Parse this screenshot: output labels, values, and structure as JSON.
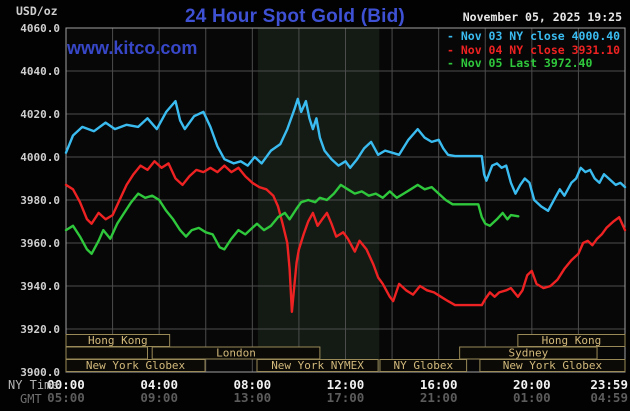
{
  "header": {
    "units_label": "USD/oz",
    "title": "24 Hour Spot Gold (Bid)",
    "datetime": "November 05, 2025 19:25",
    "watermark": "www.kitco.com"
  },
  "legend": {
    "items": [
      {
        "name": "Nov 03",
        "label": "- Nov 03 NY close 4000.40",
        "color": "#3bbcf0"
      },
      {
        "name": "Nov 04",
        "label": "- Nov 04 NY close 3931.10",
        "color": "#ee2222"
      },
      {
        "name": "Nov 05",
        "label": "- Nov 05 Last 3972.40",
        "color": "#2fc83c"
      }
    ]
  },
  "axis": {
    "ny_time_label": "NY Time",
    "gmt_label": "GMT"
  },
  "sessions": [
    {
      "row": 0,
      "start": 0,
      "end": 4.45,
      "label": "Hong Kong"
    },
    {
      "row": 0,
      "start": 19.4,
      "end": 24,
      "label": "Hong Kong"
    },
    {
      "row": 1,
      "start": 0,
      "end": 3.5,
      "label": ""
    },
    {
      "row": 1,
      "start": 3.7,
      "end": 10.9,
      "label": "London"
    },
    {
      "row": 1,
      "start": 16.9,
      "end": 22.8,
      "label": "Sydney"
    },
    {
      "row": 2,
      "start": 0,
      "end": 5.97,
      "label": "New York Globex"
    },
    {
      "row": 2,
      "start": 8.2,
      "end": 13.4,
      "label": "New York NYMEX"
    },
    {
      "row": 2,
      "start": 13.48,
      "end": 17.2,
      "label": "NY Globex"
    },
    {
      "row": 2,
      "start": 17.77,
      "end": 24,
      "label": "New York Globex"
    }
  ],
  "colors": {
    "background": "#020202",
    "plot_background": "#070707",
    "highlight_band": "#141b15",
    "grid": "#4c4c4c",
    "frame": "#a0a0a0",
    "title_blue": "#3e51d4",
    "watermark_blue": "#3747c8",
    "y_tick_text": "#cfcfcf",
    "x_tick_ny_text": "#f2f2f2",
    "x_tick_gmt_text": "#5c5c5c",
    "session_border": "#9a8a58",
    "session_text": "#d2b97c",
    "session_fill": "#0b0a06"
  },
  "chart_data": {
    "type": "line",
    "title": "24 Hour Spot Gold (Bid)",
    "x_unit": "hour of day (NY time)",
    "xlim": [
      0,
      24
    ],
    "ylim": [
      3900,
      4060
    ],
    "grid": true,
    "legend_position": "top-right",
    "highlight_band_hours": [
      8.24,
      13.45
    ],
    "y_tick_labels": [
      "4060.0",
      "4040.0",
      "4020.0",
      "4000.0",
      "3980.0",
      "3960.0",
      "3940.0",
      "3920.0",
      "3900.0"
    ],
    "x_tick_hours": [
      0,
      4,
      8,
      12,
      16,
      20,
      23.983
    ],
    "x_tick_labels_ny": [
      "00:00",
      "04:00",
      "08:00",
      "12:00",
      "16:00",
      "20:00",
      "23:59"
    ],
    "x_tick_labels_gmt": [
      "05:00",
      "09:00",
      "13:00",
      "17:00",
      "21:00",
      "01:00",
      "04:59"
    ],
    "series": [
      {
        "name": "Nov 03",
        "close_note": "NY close 4000.40",
        "color": "#3bbcf0",
        "points": [
          [
            0,
            4002
          ],
          [
            0.3,
            4010
          ],
          [
            0.7,
            4014
          ],
          [
            1.2,
            4012
          ],
          [
            1.7,
            4016
          ],
          [
            2.1,
            4013
          ],
          [
            2.6,
            4015
          ],
          [
            3.1,
            4014
          ],
          [
            3.5,
            4018
          ],
          [
            3.9,
            4013
          ],
          [
            4.3,
            4021
          ],
          [
            4.7,
            4026
          ],
          [
            4.9,
            4017
          ],
          [
            5.1,
            4013
          ],
          [
            5.5,
            4019
          ],
          [
            5.9,
            4021
          ],
          [
            6.2,
            4014
          ],
          [
            6.5,
            4005
          ],
          [
            6.8,
            3999
          ],
          [
            7.2,
            3997
          ],
          [
            7.5,
            3998
          ],
          [
            7.8,
            3996
          ],
          [
            8.1,
            4000
          ],
          [
            8.4,
            3997
          ],
          [
            8.8,
            4003
          ],
          [
            9.2,
            4006
          ],
          [
            9.5,
            4013
          ],
          [
            9.8,
            4022
          ],
          [
            9.95,
            4027
          ],
          [
            10.1,
            4021
          ],
          [
            10.3,
            4026
          ],
          [
            10.45,
            4018
          ],
          [
            10.6,
            4013
          ],
          [
            10.75,
            4018
          ],
          [
            10.9,
            4009
          ],
          [
            11.1,
            4003
          ],
          [
            11.4,
            3999
          ],
          [
            11.7,
            3996
          ],
          [
            12,
            3998
          ],
          [
            12.2,
            3995
          ],
          [
            12.5,
            3999
          ],
          [
            12.8,
            4004
          ],
          [
            13.1,
            4007
          ],
          [
            13.4,
            4001
          ],
          [
            13.7,
            4003
          ],
          [
            14,
            4002
          ],
          [
            14.3,
            4001
          ],
          [
            14.7,
            4008
          ],
          [
            15.1,
            4013
          ],
          [
            15.4,
            4009
          ],
          [
            15.7,
            4007
          ],
          [
            16,
            4008
          ],
          [
            16.2,
            4004
          ],
          [
            16.4,
            4001
          ],
          [
            16.7,
            4000.4
          ],
          [
            17.85,
            4000.4
          ],
          [
            17.95,
            3992
          ],
          [
            18.05,
            3989
          ],
          [
            18.3,
            3996
          ],
          [
            18.5,
            3997
          ],
          [
            18.7,
            3995
          ],
          [
            18.9,
            3996
          ],
          [
            19.1,
            3988
          ],
          [
            19.3,
            3983
          ],
          [
            19.5,
            3987
          ],
          [
            19.7,
            3990
          ],
          [
            19.9,
            3988
          ],
          [
            20.1,
            3980
          ],
          [
            20.4,
            3977
          ],
          [
            20.7,
            3975
          ],
          [
            21,
            3981
          ],
          [
            21.2,
            3985
          ],
          [
            21.4,
            3982
          ],
          [
            21.7,
            3988
          ],
          [
            21.9,
            3990
          ],
          [
            22.1,
            3995
          ],
          [
            22.3,
            3993
          ],
          [
            22.5,
            3994
          ],
          [
            22.7,
            3990
          ],
          [
            22.9,
            3988
          ],
          [
            23.1,
            3992
          ],
          [
            23.3,
            3990
          ],
          [
            23.6,
            3987
          ],
          [
            23.8,
            3988
          ],
          [
            24,
            3986
          ]
        ]
      },
      {
        "name": "Nov 04",
        "close_note": "NY close 3931.10",
        "color": "#ee2222",
        "points": [
          [
            0,
            3987
          ],
          [
            0.3,
            3985
          ],
          [
            0.6,
            3979
          ],
          [
            0.9,
            3971
          ],
          [
            1.1,
            3969
          ],
          [
            1.4,
            3974
          ],
          [
            1.7,
            3971
          ],
          [
            2,
            3973
          ],
          [
            2.3,
            3980
          ],
          [
            2.6,
            3987
          ],
          [
            2.9,
            3992
          ],
          [
            3.2,
            3996
          ],
          [
            3.5,
            3994
          ],
          [
            3.8,
            3998
          ],
          [
            4.1,
            3995
          ],
          [
            4.4,
            3997
          ],
          [
            4.7,
            3990
          ],
          [
            5,
            3987
          ],
          [
            5.3,
            3991
          ],
          [
            5.6,
            3994
          ],
          [
            5.9,
            3993
          ],
          [
            6.2,
            3995
          ],
          [
            6.5,
            3993
          ],
          [
            6.8,
            3996
          ],
          [
            7.1,
            3993
          ],
          [
            7.4,
            3995
          ],
          [
            7.7,
            3991
          ],
          [
            8,
            3988
          ],
          [
            8.3,
            3986
          ],
          [
            8.6,
            3985
          ],
          [
            8.9,
            3982
          ],
          [
            9.1,
            3977
          ],
          [
            9.3,
            3969
          ],
          [
            9.5,
            3960
          ],
          [
            9.6,
            3948
          ],
          [
            9.7,
            3928
          ],
          [
            9.8,
            3940
          ],
          [
            9.9,
            3951
          ],
          [
            10,
            3957
          ],
          [
            10.2,
            3964
          ],
          [
            10.4,
            3970
          ],
          [
            10.6,
            3974
          ],
          [
            10.8,
            3968
          ],
          [
            11,
            3971
          ],
          [
            11.2,
            3974
          ],
          [
            11.4,
            3969
          ],
          [
            11.6,
            3963
          ],
          [
            11.9,
            3965
          ],
          [
            12.1,
            3962
          ],
          [
            12.4,
            3956
          ],
          [
            12.6,
            3961
          ],
          [
            12.9,
            3957
          ],
          [
            13.2,
            3950
          ],
          [
            13.4,
            3944
          ],
          [
            13.6,
            3941
          ],
          [
            13.9,
            3935
          ],
          [
            14.05,
            3933
          ],
          [
            14.3,
            3941
          ],
          [
            14.6,
            3938
          ],
          [
            14.9,
            3936
          ],
          [
            15.2,
            3940
          ],
          [
            15.5,
            3938
          ],
          [
            15.8,
            3937
          ],
          [
            16.1,
            3935
          ],
          [
            16.4,
            3933
          ],
          [
            16.7,
            3931.1
          ],
          [
            17.85,
            3931.1
          ],
          [
            18,
            3934
          ],
          [
            18.2,
            3937
          ],
          [
            18.4,
            3935
          ],
          [
            18.6,
            3937
          ],
          [
            18.9,
            3938
          ],
          [
            19.1,
            3939
          ],
          [
            19.4,
            3935
          ],
          [
            19.6,
            3938
          ],
          [
            19.8,
            3945
          ],
          [
            20,
            3947
          ],
          [
            20.2,
            3941
          ],
          [
            20.5,
            3939
          ],
          [
            20.8,
            3940
          ],
          [
            21.1,
            3943
          ],
          [
            21.4,
            3948
          ],
          [
            21.7,
            3952
          ],
          [
            22,
            3955
          ],
          [
            22.2,
            3960
          ],
          [
            22.4,
            3961
          ],
          [
            22.6,
            3959
          ],
          [
            22.8,
            3962
          ],
          [
            23,
            3964
          ],
          [
            23.2,
            3967
          ],
          [
            23.5,
            3970
          ],
          [
            23.75,
            3972
          ],
          [
            24,
            3966
          ]
        ]
      },
      {
        "name": "Nov 05",
        "close_note": "Last 3972.40",
        "color": "#2fc83c",
        "points": [
          [
            0,
            3966
          ],
          [
            0.3,
            3968
          ],
          [
            0.6,
            3963
          ],
          [
            0.9,
            3957
          ],
          [
            1.1,
            3955
          ],
          [
            1.4,
            3961
          ],
          [
            1.6,
            3966
          ],
          [
            1.9,
            3962
          ],
          [
            2.2,
            3969
          ],
          [
            2.5,
            3974
          ],
          [
            2.8,
            3979
          ],
          [
            3.1,
            3983
          ],
          [
            3.4,
            3981
          ],
          [
            3.7,
            3982
          ],
          [
            4,
            3980
          ],
          [
            4.3,
            3975
          ],
          [
            4.6,
            3971
          ],
          [
            4.9,
            3966
          ],
          [
            5.15,
            3963
          ],
          [
            5.4,
            3966
          ],
          [
            5.7,
            3967
          ],
          [
            6,
            3965
          ],
          [
            6.3,
            3964
          ],
          [
            6.6,
            3958
          ],
          [
            6.8,
            3957
          ],
          [
            7.1,
            3962
          ],
          [
            7.4,
            3966
          ],
          [
            7.7,
            3964
          ],
          [
            8,
            3967
          ],
          [
            8.2,
            3969
          ],
          [
            8.5,
            3966
          ],
          [
            8.8,
            3968
          ],
          [
            9.1,
            3972
          ],
          [
            9.4,
            3974
          ],
          [
            9.6,
            3971
          ],
          [
            9.9,
            3976
          ],
          [
            10.1,
            3979
          ],
          [
            10.4,
            3980
          ],
          [
            10.7,
            3979
          ],
          [
            10.9,
            3981
          ],
          [
            11.2,
            3980
          ],
          [
            11.5,
            3983
          ],
          [
            11.8,
            3987
          ],
          [
            12.1,
            3985
          ],
          [
            12.4,
            3983
          ],
          [
            12.7,
            3984
          ],
          [
            13,
            3982
          ],
          [
            13.3,
            3983
          ],
          [
            13.6,
            3981
          ],
          [
            13.9,
            3984
          ],
          [
            14.2,
            3981
          ],
          [
            14.5,
            3983
          ],
          [
            14.8,
            3985
          ],
          [
            15.1,
            3987
          ],
          [
            15.4,
            3985
          ],
          [
            15.7,
            3986
          ],
          [
            16,
            3983
          ],
          [
            16.3,
            3980
          ],
          [
            16.6,
            3978
          ],
          [
            17.7,
            3978
          ],
          [
            17.85,
            3972
          ],
          [
            18,
            3969
          ],
          [
            18.2,
            3968
          ],
          [
            18.5,
            3971
          ],
          [
            18.75,
            3974
          ],
          [
            18.95,
            3971
          ],
          [
            19.1,
            3973
          ],
          [
            19.42,
            3972.4
          ]
        ]
      }
    ]
  }
}
